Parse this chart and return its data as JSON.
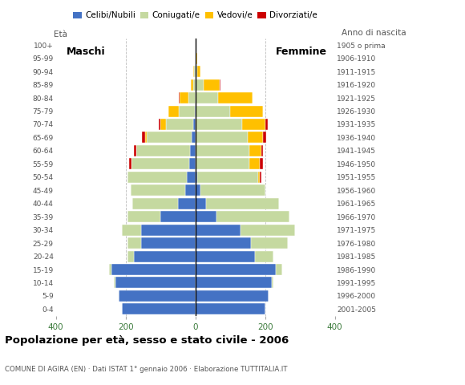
{
  "age_groups": [
    "0-4",
    "5-9",
    "10-14",
    "15-19",
    "20-24",
    "25-29",
    "30-34",
    "35-39",
    "40-44",
    "45-49",
    "50-54",
    "55-59",
    "60-64",
    "65-69",
    "70-74",
    "75-79",
    "80-84",
    "85-89",
    "90-94",
    "95-99",
    "100+"
  ],
  "birth_years": [
    "2001-2005",
    "1996-2000",
    "1991-1995",
    "1986-1990",
    "1981-1985",
    "1976-1980",
    "1971-1975",
    "1966-1970",
    "1961-1965",
    "1956-1960",
    "1951-1955",
    "1946-1950",
    "1941-1945",
    "1936-1940",
    "1931-1935",
    "1926-1930",
    "1921-1925",
    "1916-1920",
    "1911-1915",
    "1906-1910",
    "1905 o prima"
  ],
  "male_celibi": [
    210,
    220,
    230,
    240,
    175,
    155,
    155,
    100,
    50,
    30,
    25,
    18,
    15,
    10,
    5,
    2,
    0,
    0,
    0,
    0,
    0
  ],
  "male_coniugati": [
    0,
    0,
    3,
    8,
    20,
    40,
    55,
    95,
    130,
    155,
    170,
    165,
    155,
    130,
    80,
    45,
    20,
    5,
    3,
    0,
    0
  ],
  "male_vedovi": [
    0,
    0,
    0,
    0,
    0,
    0,
    0,
    0,
    0,
    0,
    0,
    0,
    0,
    5,
    15,
    30,
    25,
    8,
    2,
    0,
    0
  ],
  "male_divorziati": [
    0,
    0,
    0,
    0,
    0,
    0,
    0,
    0,
    0,
    0,
    0,
    8,
    5,
    8,
    5,
    0,
    3,
    0,
    0,
    0,
    0
  ],
  "female_celibi": [
    200,
    210,
    220,
    230,
    170,
    160,
    130,
    60,
    30,
    15,
    5,
    0,
    0,
    0,
    0,
    0,
    0,
    0,
    0,
    0,
    0
  ],
  "female_coniugati": [
    0,
    0,
    5,
    20,
    55,
    105,
    155,
    210,
    210,
    185,
    175,
    155,
    155,
    150,
    135,
    100,
    65,
    25,
    5,
    0,
    0
  ],
  "female_vedovi": [
    0,
    0,
    0,
    0,
    0,
    0,
    0,
    0,
    0,
    0,
    5,
    30,
    35,
    45,
    65,
    95,
    100,
    45,
    10,
    5,
    0
  ],
  "female_divorziati": [
    0,
    0,
    0,
    0,
    0,
    0,
    0,
    0,
    0,
    0,
    5,
    8,
    5,
    8,
    8,
    0,
    0,
    3,
    0,
    0,
    0
  ],
  "color_celibi": "#4472c4",
  "color_coniugati": "#c5d9a0",
  "color_vedovi": "#ffc000",
  "color_divorziati": "#cc0000",
  "title": "Popolazione per età, sesso e stato civile - 2006",
  "subtitle": "COMUNE DI AGIRA (EN) · Dati ISTAT 1° gennaio 2006 · Elaborazione TUTTITALIA.IT",
  "label_maschi": "Maschi",
  "label_femmine": "Femmine",
  "legend_celibi": "Celibi/Nubili",
  "legend_coniugati": "Coniugati/e",
  "legend_vedovi": "Vedovi/e",
  "legend_divorziati": "Divorziati/e",
  "ylabel_eta": "Età",
  "ylabel_anno": "Anno di nascita",
  "xlim": 400,
  "bg_color": "#ffffff",
  "grid_color": "#bbbbbb"
}
